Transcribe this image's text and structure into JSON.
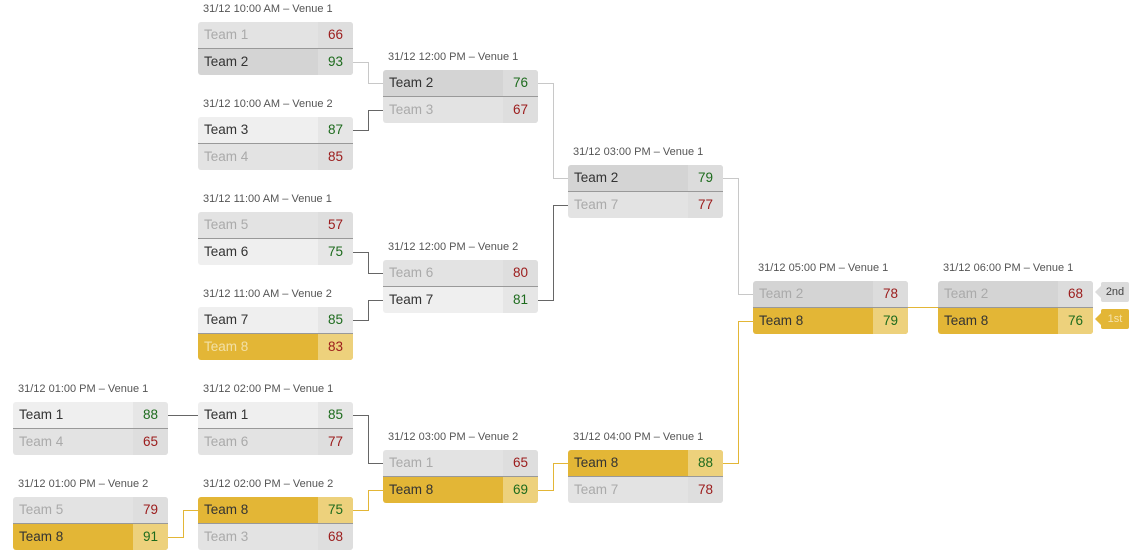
{
  "matches": [
    {
      "label": "31/12 10:00 AM – Venue 1",
      "teams": [
        {
          "name": "Team 1",
          "score": "66",
          "result": "loser",
          "highlight": ""
        },
        {
          "name": "Team 2",
          "score": "93",
          "result": "winner",
          "highlight": "gray"
        }
      ]
    },
    {
      "label": "31/12 10:00 AM – Venue 2",
      "teams": [
        {
          "name": "Team 3",
          "score": "87",
          "result": "winner",
          "highlight": ""
        },
        {
          "name": "Team 4",
          "score": "85",
          "result": "loser",
          "highlight": ""
        }
      ]
    },
    {
      "label": "31/12 11:00 AM – Venue 1",
      "teams": [
        {
          "name": "Team 5",
          "score": "57",
          "result": "loser",
          "highlight": ""
        },
        {
          "name": "Team 6",
          "score": "75",
          "result": "winner",
          "highlight": ""
        }
      ]
    },
    {
      "label": "31/12 11:00 AM – Venue 2",
      "teams": [
        {
          "name": "Team 7",
          "score": "85",
          "result": "winner",
          "highlight": ""
        },
        {
          "name": "Team 8",
          "score": "83",
          "result": "loser",
          "highlight": "gold"
        }
      ]
    },
    {
      "label": "31/12 01:00 PM – Venue 1",
      "teams": [
        {
          "name": "Team 1",
          "score": "88",
          "result": "winner",
          "highlight": ""
        },
        {
          "name": "Team 4",
          "score": "65",
          "result": "loser",
          "highlight": ""
        }
      ]
    },
    {
      "label": "31/12 01:00 PM – Venue 2",
      "teams": [
        {
          "name": "Team 5",
          "score": "79",
          "result": "loser",
          "highlight": ""
        },
        {
          "name": "Team 8",
          "score": "91",
          "result": "winner",
          "highlight": "gold"
        }
      ]
    },
    {
      "label": "31/12 02:00 PM – Venue 1",
      "teams": [
        {
          "name": "Team 1",
          "score": "85",
          "result": "winner",
          "highlight": ""
        },
        {
          "name": "Team 6",
          "score": "77",
          "result": "loser",
          "highlight": ""
        }
      ]
    },
    {
      "label": "31/12 02:00 PM – Venue 2",
      "teams": [
        {
          "name": "Team 8",
          "score": "75",
          "result": "winner",
          "highlight": "gold"
        },
        {
          "name": "Team 3",
          "score": "68",
          "result": "loser",
          "highlight": ""
        }
      ]
    },
    {
      "label": "31/12 12:00 PM – Venue 1",
      "teams": [
        {
          "name": "Team 2",
          "score": "76",
          "result": "winner",
          "highlight": "gray"
        },
        {
          "name": "Team 3",
          "score": "67",
          "result": "loser",
          "highlight": ""
        }
      ]
    },
    {
      "label": "31/12 12:00 PM – Venue 2",
      "teams": [
        {
          "name": "Team 6",
          "score": "80",
          "result": "loser",
          "highlight": ""
        },
        {
          "name": "Team 7",
          "score": "81",
          "result": "winner",
          "highlight": ""
        }
      ]
    },
    {
      "label": "31/12 03:00 PM – Venue 2",
      "teams": [
        {
          "name": "Team 1",
          "score": "65",
          "result": "loser",
          "highlight": ""
        },
        {
          "name": "Team 8",
          "score": "69",
          "result": "winner",
          "highlight": "gold"
        }
      ]
    },
    {
      "label": "31/12 03:00 PM – Venue 1",
      "teams": [
        {
          "name": "Team 2",
          "score": "79",
          "result": "winner",
          "highlight": "gray"
        },
        {
          "name": "Team 7",
          "score": "77",
          "result": "loser",
          "highlight": ""
        }
      ]
    },
    {
      "label": "31/12 04:00 PM – Venue 1",
      "teams": [
        {
          "name": "Team 8",
          "score": "88",
          "result": "winner",
          "highlight": "gold"
        },
        {
          "name": "Team 7",
          "score": "78",
          "result": "loser",
          "highlight": ""
        }
      ]
    },
    {
      "label": "31/12 05:00 PM – Venue 1",
      "teams": [
        {
          "name": "Team 2",
          "score": "78",
          "result": "loser",
          "highlight": "gray"
        },
        {
          "name": "Team 8",
          "score": "79",
          "result": "winner",
          "highlight": "gold"
        }
      ]
    },
    {
      "label": "31/12 06:00 PM – Venue 1",
      "teams": [
        {
          "name": "Team 2",
          "score": "68",
          "result": "loser",
          "highlight": "gray"
        },
        {
          "name": "Team 8",
          "score": "76",
          "result": "winner",
          "highlight": "gold"
        }
      ]
    }
  ],
  "final_badges": {
    "second": "2nd",
    "first": "1st"
  },
  "colors": {
    "highlight_gold": "#e3b636",
    "highlight_gray": "#d4d4d4",
    "win_score": "#1d6b1d",
    "lose_score": "#9b1b1b"
  }
}
